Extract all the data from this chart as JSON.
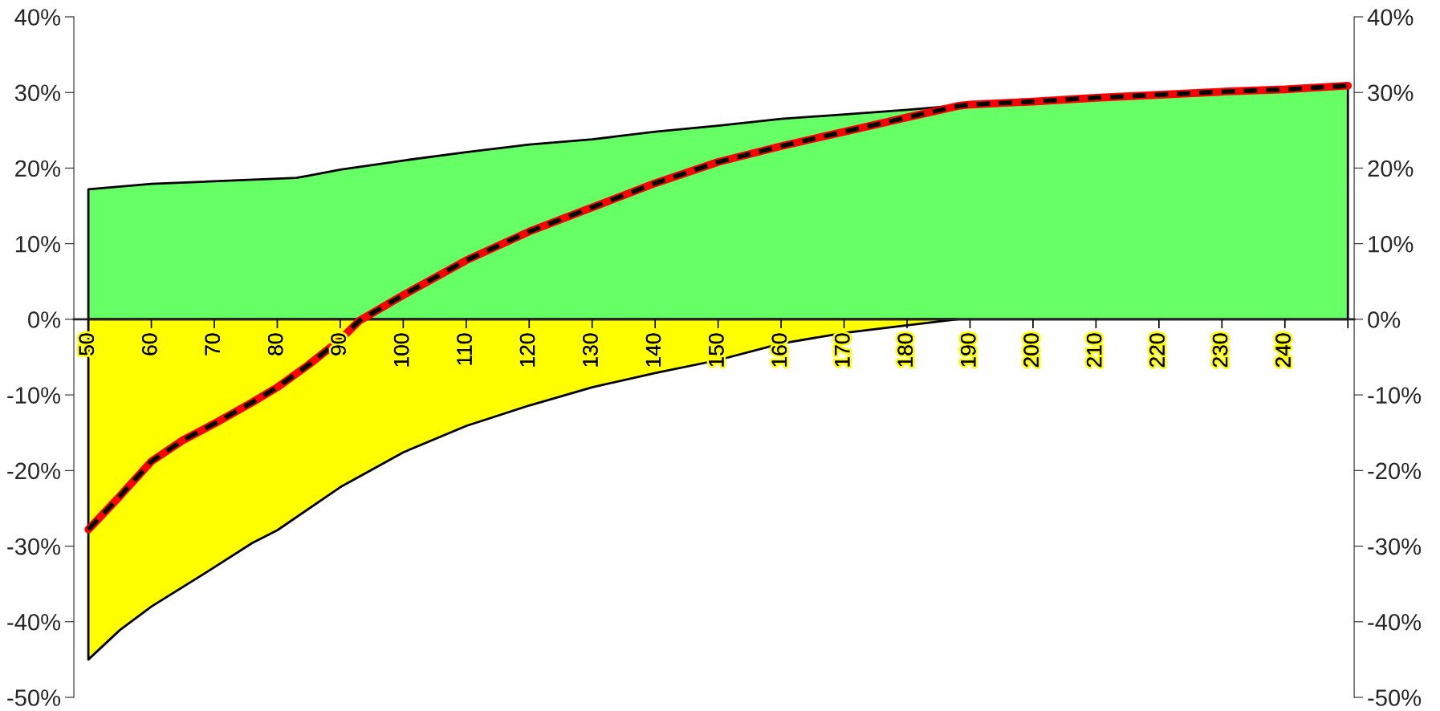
{
  "chart_data": {
    "type": "area",
    "xlim": [
      47.7,
      251.0
    ],
    "xticks": [
      50,
      60,
      70,
      80,
      90,
      100,
      110,
      120,
      130,
      140,
      150,
      160,
      170,
      180,
      190,
      200,
      210,
      220,
      230,
      240,
      {
        "value": 250,
        "label": null
      }
    ],
    "ylim": [
      -50,
      40
    ],
    "yticks": [
      {
        "value": -50,
        "label": "-50%"
      },
      {
        "value": -40,
        "label": "-40%"
      },
      {
        "value": -30,
        "label": "-30%"
      },
      {
        "value": -20,
        "label": "-20%"
      },
      {
        "value": -10,
        "label": "-10%"
      },
      {
        "value": 0,
        "label": "0%"
      },
      {
        "value": 10,
        "label": "10%"
      },
      {
        "value": 20,
        "label": "20%"
      },
      {
        "value": 30,
        "label": "30%"
      },
      {
        "value": 40,
        "label": "40%"
      }
    ],
    "y2lim": [
      -50,
      40
    ],
    "y2ticks": [
      {
        "value": -50,
        "label": "-50%"
      },
      {
        "value": -40,
        "label": "-40%"
      },
      {
        "value": -30,
        "label": "-30%"
      },
      {
        "value": -20,
        "label": "-20%"
      },
      {
        "value": -10,
        "label": "-10%"
      },
      {
        "value": 0,
        "label": "0%"
      },
      {
        "value": 10,
        "label": "10%"
      },
      {
        "value": 20,
        "label": "20%"
      },
      {
        "value": 30,
        "label": "30%"
      },
      {
        "value": 40,
        "label": "40%"
      }
    ],
    "grid": false,
    "legend": false,
    "series": [
      {
        "type": "area",
        "color": "#66ff66",
        "x": [
          50,
          60,
          80,
          83,
          85,
          90,
          100,
          110,
          120,
          130,
          140,
          150,
          160,
          170,
          180,
          187,
          190,
          200,
          210,
          220,
          230,
          240,
          250
        ],
        "values": [
          17.2,
          17.9,
          18.6,
          18.7,
          19.0,
          19.8,
          21.0,
          22.1,
          23.1,
          23.8,
          24.8,
          25.6,
          26.5,
          27.1,
          27.7,
          28.2,
          28.4,
          28.8,
          29.3,
          29.7,
          30.1,
          30.4,
          30.9
        ]
      },
      {
        "type": "area",
        "color": "#ffff00",
        "x": [
          50,
          55,
          60,
          70,
          76,
          80,
          90,
          100,
          110,
          120,
          130,
          140,
          150,
          160,
          170,
          180,
          188
        ],
        "values": [
          -45.0,
          -41.1,
          -38.0,
          -32.8,
          -29.6,
          -27.9,
          -22.2,
          -17.6,
          -14.1,
          -11.4,
          -9.0,
          -7.1,
          -5.4,
          -3.2,
          -1.8,
          -0.8,
          0
        ]
      },
      {
        "type": "line",
        "color": "#ff0000",
        "line_style": "solid",
        "x": [
          50,
          55,
          60,
          65,
          70,
          76,
          80,
          85,
          90,
          93,
          100,
          110,
          120,
          130,
          140,
          150,
          160,
          170,
          180,
          188,
          190,
          200,
          210,
          220,
          230,
          240,
          250
        ],
        "values": [
          -27.8,
          -23.4,
          -18.8,
          -16.0,
          -13.8,
          -11.0,
          -9.0,
          -6.0,
          -2.7,
          -0.2,
          3.2,
          7.8,
          11.6,
          14.8,
          18.0,
          20.8,
          22.9,
          24.8,
          26.7,
          28.2,
          28.4,
          28.8,
          29.3,
          29.7,
          30.1,
          30.4,
          30.9
        ]
      },
      {
        "type": "line",
        "color": "#000000",
        "line_style": "dashed",
        "x": [
          50,
          55,
          60,
          65,
          70,
          76,
          80,
          85,
          90,
          93,
          100,
          110,
          120,
          130,
          140,
          150,
          160,
          170,
          180,
          188,
          190,
          200,
          210,
          220,
          230,
          240,
          250
        ],
        "values": [
          -27.8,
          -23.4,
          -18.8,
          -16.0,
          -13.8,
          -11.0,
          -9.0,
          -6.0,
          -2.7,
          -0.2,
          3.2,
          7.8,
          11.6,
          14.8,
          18.0,
          20.8,
          22.9,
          24.8,
          26.7,
          28.2,
          28.4,
          28.8,
          29.3,
          29.7,
          30.1,
          30.4,
          30.9
        ]
      }
    ]
  }
}
